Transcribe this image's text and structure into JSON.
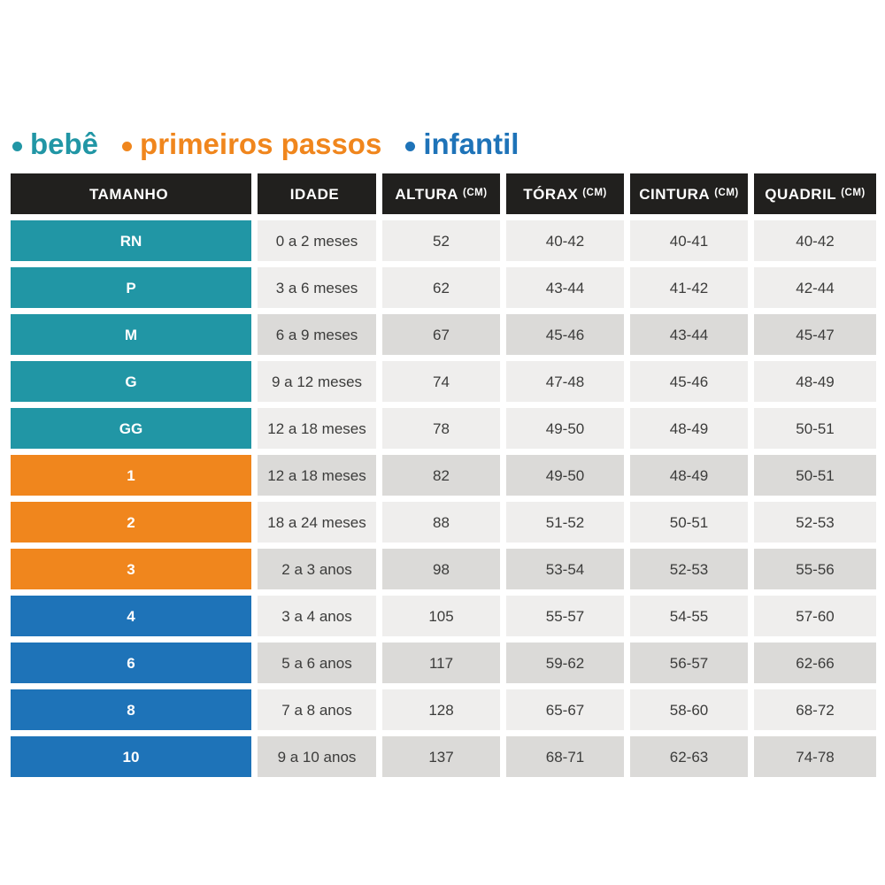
{
  "page": {
    "background": "#ffffff"
  },
  "legend": {
    "items": [
      {
        "label": "bebê",
        "color": "#2196A5"
      },
      {
        "label": "primeiros passos",
        "color": "#F0861D"
      },
      {
        "label": "infantil",
        "color": "#1E73B8"
      }
    ]
  },
  "table": {
    "header_bg": "#21201E",
    "header_text": "#FFFFFF",
    "cell_text": "#3C3C3B",
    "row_shades": {
      "light": "#EFEEED",
      "dark": "#DBDAD8"
    },
    "groups": {
      "bebe": "#2196A5",
      "primeiros_passos": "#F0861D",
      "infantil": "#1E73B8"
    },
    "headers": [
      {
        "label": "TAMANHO",
        "unit": ""
      },
      {
        "label": "IDADE",
        "unit": ""
      },
      {
        "label": "ALTURA",
        "unit": "(CM)"
      },
      {
        "label": "TÓRAX",
        "unit": "(CM)"
      },
      {
        "label": "CINTURA",
        "unit": "(CM)"
      },
      {
        "label": "QUADRIL",
        "unit": "(CM)"
      }
    ],
    "rows": [
      {
        "group": "bebe",
        "size": "RN",
        "idade": "0 a 2 meses",
        "altura": "52",
        "torax": "40-42",
        "cintura": "40-41",
        "quadril": "40-42",
        "shade": "light"
      },
      {
        "group": "bebe",
        "size": "P",
        "idade": "3 a 6 meses",
        "altura": "62",
        "torax": "43-44",
        "cintura": "41-42",
        "quadril": "42-44",
        "shade": "light"
      },
      {
        "group": "bebe",
        "size": "M",
        "idade": "6 a 9 meses",
        "altura": "67",
        "torax": "45-46",
        "cintura": "43-44",
        "quadril": "45-47",
        "shade": "dark"
      },
      {
        "group": "bebe",
        "size": "G",
        "idade": "9 a 12 meses",
        "altura": "74",
        "torax": "47-48",
        "cintura": "45-46",
        "quadril": "48-49",
        "shade": "light"
      },
      {
        "group": "bebe",
        "size": "GG",
        "idade": "12 a 18 meses",
        "altura": "78",
        "torax": "49-50",
        "cintura": "48-49",
        "quadril": "50-51",
        "shade": "light"
      },
      {
        "group": "primeiros_passos",
        "size": "1",
        "idade": "12 a 18 meses",
        "altura": "82",
        "torax": "49-50",
        "cintura": "48-49",
        "quadril": "50-51",
        "shade": "dark"
      },
      {
        "group": "primeiros_passos",
        "size": "2",
        "idade": "18 a 24 meses",
        "altura": "88",
        "torax": "51-52",
        "cintura": "50-51",
        "quadril": "52-53",
        "shade": "light"
      },
      {
        "group": "primeiros_passos",
        "size": "3",
        "idade": "2 a 3 anos",
        "altura": "98",
        "torax": "53-54",
        "cintura": "52-53",
        "quadril": "55-56",
        "shade": "dark"
      },
      {
        "group": "infantil",
        "size": "4",
        "idade": "3 a 4 anos",
        "altura": "105",
        "torax": "55-57",
        "cintura": "54-55",
        "quadril": "57-60",
        "shade": "light"
      },
      {
        "group": "infantil",
        "size": "6",
        "idade": "5 a 6 anos",
        "altura": "117",
        "torax": "59-62",
        "cintura": "56-57",
        "quadril": "62-66",
        "shade": "dark"
      },
      {
        "group": "infantil",
        "size": "8",
        "idade": "7 a 8 anos",
        "altura": "128",
        "torax": "65-67",
        "cintura": "58-60",
        "quadril": "68-72",
        "shade": "light"
      },
      {
        "group": "infantil",
        "size": "10",
        "idade": "9 a 10 anos",
        "altura": "137",
        "torax": "68-71",
        "cintura": "62-63",
        "quadril": "74-78",
        "shade": "dark"
      }
    ]
  },
  "chart_data": {
    "type": "table",
    "title": "",
    "legend": [
      "bebê",
      "primeiros passos",
      "infantil"
    ],
    "columns": [
      "TAMANHO",
      "IDADE",
      "ALTURA (CM)",
      "TÓRAX (CM)",
      "CINTURA (CM)",
      "QUADRIL (CM)"
    ],
    "rows": [
      [
        "RN",
        "0 a 2 meses",
        "52",
        "40-42",
        "40-41",
        "40-42"
      ],
      [
        "P",
        "3 a 6 meses",
        "62",
        "43-44",
        "41-42",
        "42-44"
      ],
      [
        "M",
        "6 a 9 meses",
        "67",
        "45-46",
        "43-44",
        "45-47"
      ],
      [
        "G",
        "9 a 12 meses",
        "74",
        "47-48",
        "45-46",
        "48-49"
      ],
      [
        "GG",
        "12 a 18 meses",
        "78",
        "49-50",
        "48-49",
        "50-51"
      ],
      [
        "1",
        "12 a 18 meses",
        "82",
        "49-50",
        "48-49",
        "50-51"
      ],
      [
        "2",
        "18 a 24 meses",
        "88",
        "51-52",
        "50-51",
        "52-53"
      ],
      [
        "3",
        "2 a 3 anos",
        "98",
        "53-54",
        "52-53",
        "55-56"
      ],
      [
        "4",
        "3 a 4 anos",
        "105",
        "55-57",
        "54-55",
        "57-60"
      ],
      [
        "6",
        "5 a 6 anos",
        "117",
        "59-62",
        "56-57",
        "62-66"
      ],
      [
        "8",
        "7 a 8 anos",
        "128",
        "65-67",
        "58-60",
        "68-72"
      ],
      [
        "10",
        "9 a 10 anos",
        "137",
        "68-71",
        "62-63",
        "74-78"
      ]
    ]
  }
}
